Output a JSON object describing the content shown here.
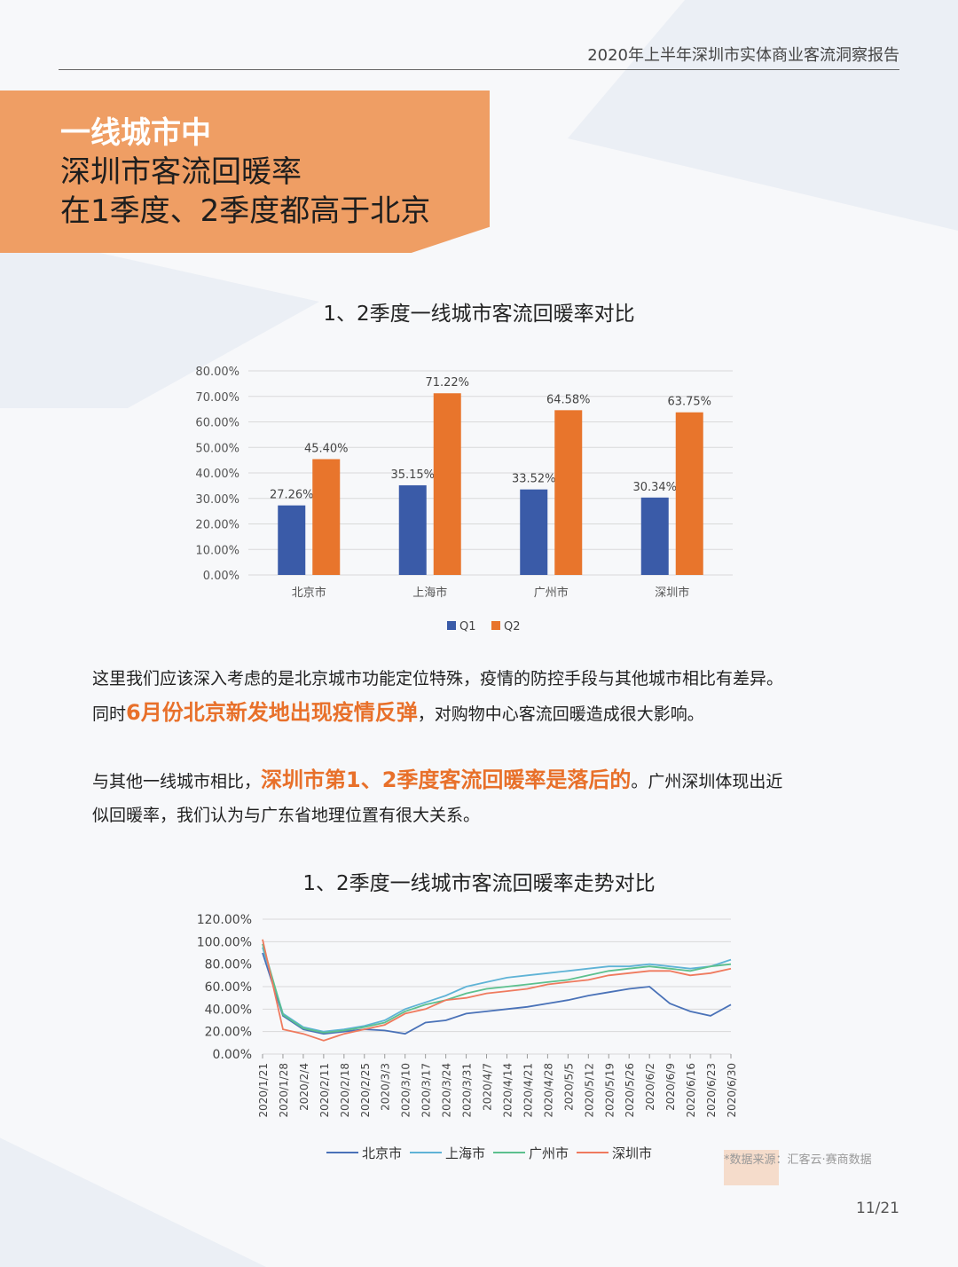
{
  "header": {
    "report_title": "2020年上半年深圳市实体商业客流洞察报告"
  },
  "banner": {
    "line1": "一线城市中",
    "line2": "深圳市客流回暖率",
    "line3": "在1季度、2季度都高于北京"
  },
  "paragraphs": {
    "p1_a": "这里我们应该深入考虑的是北京城市功能定位特殊，疫情的防控手段与其他城市相比有差异。",
    "p1_b": "同时",
    "p1_hl": "6月份北京新发地出现疫情反弹",
    "p1_c": "，对购物中心客流回暖造成很大影响。",
    "p2_a": "与其他一线城市相比，",
    "p2_hl": "深圳市第1、2季度客流回暖率是落后的",
    "p2_c": "。广州深圳体现出近",
    "p2_d": "似回暖率，我们认为与广东省地理位置有很大关系。"
  },
  "footer": {
    "source": "*数据来源：汇客云·赛商数据",
    "page": "11/21"
  },
  "colors": {
    "q1": "#3a5ba8",
    "q2": "#e8752c",
    "beijing": "#4a72b8",
    "shanghai": "#5fb3d6",
    "guangzhou": "#5cc08e",
    "shenzhen": "#ef7a5e",
    "accent": "#ef9e64"
  },
  "chart_data": [
    {
      "type": "bar",
      "title": "1、2季度一线城市客流回暖率对比",
      "categories": [
        "北京市",
        "上海市",
        "广州市",
        "深圳市"
      ],
      "series": [
        {
          "name": "Q1",
          "values": [
            27.26,
            35.15,
            33.52,
            30.34
          ],
          "labels": [
            "27.26%",
            "35.15%",
            "33.52%",
            "30.34%"
          ]
        },
        {
          "name": "Q2",
          "values": [
            45.4,
            71.22,
            64.58,
            63.75
          ],
          "labels": [
            "45.40%",
            "71.22%",
            "64.58%",
            "63.75%"
          ]
        }
      ],
      "ylim": [
        0,
        80
      ],
      "yticks": [
        "0.00%",
        "10.00%",
        "20.00%",
        "30.00%",
        "40.00%",
        "50.00%",
        "60.00%",
        "70.00%",
        "80.00%"
      ],
      "grid": true,
      "legend": "bottom"
    },
    {
      "type": "line",
      "title": "1、2季度一线城市客流回暖率走势对比",
      "x_ticks": [
        "2020/1/21",
        "2020/1/28",
        "2020/2/4",
        "2020/2/11",
        "2020/2/18",
        "2020/2/25",
        "2020/3/3",
        "2020/3/10",
        "2020/3/17",
        "2020/3/24",
        "2020/3/31",
        "2020/4/7",
        "2020/4/14",
        "2020/4/21",
        "2020/4/28",
        "2020/5/5",
        "2020/5/12",
        "2020/5/19",
        "2020/5/26",
        "2020/6/2",
        "2020/6/9",
        "2020/6/16",
        "2020/6/23",
        "2020/6/30"
      ],
      "ylim": [
        0,
        120
      ],
      "yticks": [
        "0.00%",
        "20.00%",
        "40.00%",
        "60.00%",
        "80.00%",
        "100.00%",
        "120.00%"
      ],
      "grid": true,
      "legend": "bottom",
      "series": [
        {
          "name": "北京市",
          "values": [
            90,
            34,
            22,
            18,
            20,
            22,
            21,
            18,
            28,
            30,
            36,
            38,
            40,
            42,
            45,
            48,
            52,
            55,
            58,
            60,
            45,
            38,
            34,
            44
          ]
        },
        {
          "name": "上海市",
          "values": [
            95,
            36,
            24,
            20,
            22,
            25,
            30,
            40,
            46,
            52,
            60,
            64,
            68,
            70,
            72,
            74,
            76,
            78,
            78,
            80,
            78,
            76,
            78,
            84
          ]
        },
        {
          "name": "广州市",
          "values": [
            98,
            35,
            23,
            19,
            21,
            24,
            28,
            38,
            44,
            48,
            54,
            58,
            60,
            62,
            64,
            66,
            70,
            74,
            76,
            78,
            76,
            74,
            78,
            80
          ]
        },
        {
          "name": "深圳市",
          "values": [
            102,
            22,
            18,
            12,
            18,
            22,
            26,
            36,
            40,
            48,
            50,
            54,
            56,
            58,
            62,
            64,
            66,
            70,
            72,
            74,
            74,
            70,
            72,
            76
          ]
        }
      ]
    }
  ]
}
